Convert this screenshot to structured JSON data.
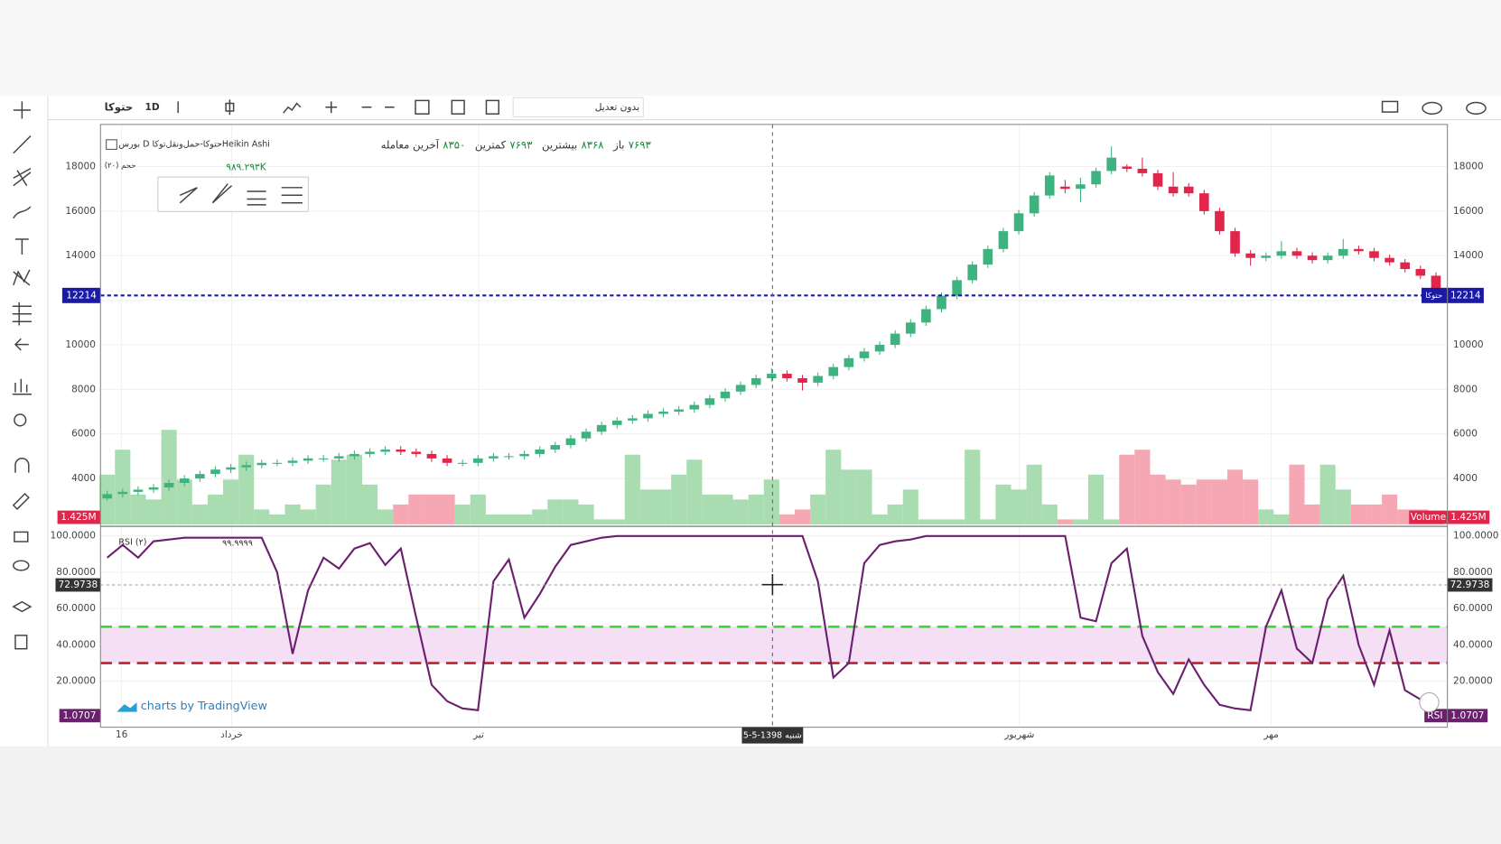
{
  "toolbar": {
    "symbol": "حتوکا",
    "interval": "1D",
    "adjust": "بدون تعدیل"
  },
  "legend": {
    "style": "Heikin Ashi",
    "name": "بورس D حتوکا-حمل‌ونقل‌توکا",
    "ohlc": [
      {
        "label": "باز",
        "value": "۷۶۹۳"
      },
      {
        "label": "بیشترین",
        "value": "۸۳۶۸"
      },
      {
        "label": "کمترین",
        "value": "۷۶۹۳"
      },
      {
        "label": "آخرین معامله",
        "value": "۸۳۵۰"
      }
    ],
    "volume_name": "حجم (۲۰)",
    "volume_value": "۹۸۹.۲۹۳K",
    "rsi_name": "RSI (۲)",
    "rsi_value": "۹۹.۹۹۹۹"
  },
  "time_labels": [
    "16",
    "خرداد",
    "تیر",
    "شهریور",
    "مهر"
  ],
  "watermark": "charts by TradingView",
  "chart_data": {
    "type": "candlestick",
    "up_color": "#3fb37f",
    "down_color": "#e0264a",
    "ylim": [
      1940,
      19890
    ],
    "yticks": [
      4000,
      6000,
      8000,
      10000,
      12000,
      14000,
      16000,
      18000
    ],
    "price_line": 12214,
    "price_line_color": "#1a1aa6",
    "candles": [
      [
        3100,
        3450,
        3000,
        3300
      ],
      [
        3300,
        3550,
        3150,
        3400
      ],
      [
        3400,
        3650,
        3250,
        3500
      ],
      [
        3500,
        3750,
        3350,
        3600
      ],
      [
        3600,
        3950,
        3450,
        3800
      ],
      [
        3800,
        4150,
        3650,
        4000
      ],
      [
        4000,
        4350,
        3850,
        4200
      ],
      [
        4200,
        4550,
        4050,
        4400
      ],
      [
        4400,
        4650,
        4250,
        4500
      ],
      [
        4500,
        4750,
        4350,
        4600
      ],
      [
        4600,
        4850,
        4450,
        4700
      ],
      [
        4700,
        4850,
        4550,
        4700
      ],
      [
        4700,
        4950,
        4550,
        4800
      ],
      [
        4800,
        5050,
        4650,
        4900
      ],
      [
        4900,
        5050,
        4750,
        4900
      ],
      [
        4900,
        5150,
        4750,
        5000
      ],
      [
        5000,
        5250,
        4850,
        5100
      ],
      [
        5100,
        5350,
        4950,
        5200
      ],
      [
        5200,
        5450,
        5050,
        5300
      ],
      [
        5300,
        5450,
        5050,
        5200
      ],
      [
        5200,
        5350,
        4950,
        5100
      ],
      [
        5100,
        5250,
        4750,
        4900
      ],
      [
        4900,
        5050,
        4550,
        4700
      ],
      [
        4700,
        4850,
        4550,
        4700
      ],
      [
        4700,
        5050,
        4550,
        4900
      ],
      [
        4900,
        5150,
        4750,
        5000
      ],
      [
        5000,
        5150,
        4850,
        5000
      ],
      [
        5000,
        5250,
        4850,
        5100
      ],
      [
        5100,
        5450,
        4950,
        5300
      ],
      [
        5300,
        5650,
        5150,
        5500
      ],
      [
        5500,
        5950,
        5350,
        5800
      ],
      [
        5800,
        6250,
        5650,
        6100
      ],
      [
        6100,
        6550,
        5950,
        6400
      ],
      [
        6400,
        6750,
        6250,
        6600
      ],
      [
        6600,
        6850,
        6450,
        6700
      ],
      [
        6700,
        7050,
        6550,
        6900
      ],
      [
        6900,
        7150,
        6750,
        7000
      ],
      [
        7000,
        7250,
        6850,
        7100
      ],
      [
        7100,
        7450,
        6950,
        7300
      ],
      [
        7300,
        7750,
        7150,
        7600
      ],
      [
        7600,
        8050,
        7450,
        7900
      ],
      [
        7900,
        8350,
        7750,
        8200
      ],
      [
        8200,
        8650,
        8050,
        8500
      ],
      [
        8500,
        8950,
        8350,
        8700
      ],
      [
        8700,
        8850,
        8350,
        8500
      ],
      [
        8500,
        8650,
        7950,
        8300
      ],
      [
        8300,
        8750,
        8150,
        8600
      ],
      [
        8600,
        9150,
        8450,
        9000
      ],
      [
        9000,
        9550,
        8850,
        9400
      ],
      [
        9400,
        9850,
        9250,
        9700
      ],
      [
        9700,
        10150,
        9550,
        10000
      ],
      [
        10000,
        10650,
        9850,
        10500
      ],
      [
        10500,
        11150,
        10350,
        11000
      ],
      [
        11000,
        11750,
        10850,
        11600
      ],
      [
        11600,
        12350,
        11450,
        12200
      ],
      [
        12200,
        13050,
        12050,
        12900
      ],
      [
        12900,
        13750,
        12750,
        13600
      ],
      [
        13600,
        14450,
        13450,
        14300
      ],
      [
        14300,
        15250,
        14150,
        15100
      ],
      [
        15100,
        16050,
        14950,
        15900
      ],
      [
        15900,
        16850,
        15750,
        16700
      ],
      [
        16700,
        17750,
        16550,
        17600
      ],
      [
        17100,
        17400,
        16800,
        17000
      ],
      [
        17000,
        17500,
        16400,
        17200
      ],
      [
        17200,
        17950,
        17050,
        17800
      ],
      [
        17800,
        18900,
        17650,
        18400
      ],
      [
        18000,
        18100,
        17750,
        17900
      ],
      [
        17900,
        18400,
        17550,
        17700
      ],
      [
        17700,
        17850,
        16950,
        17100
      ],
      [
        17100,
        17750,
        16650,
        16800
      ],
      [
        17100,
        17250,
        16650,
        16800
      ],
      [
        16800,
        16950,
        15850,
        16000
      ],
      [
        16000,
        16150,
        14950,
        15100
      ],
      [
        15100,
        15250,
        13950,
        14100
      ],
      [
        14100,
        14250,
        13550,
        13900
      ],
      [
        13900,
        14150,
        13750,
        14000
      ],
      [
        14000,
        14650,
        13850,
        14200
      ],
      [
        14200,
        14350,
        13850,
        14000
      ],
      [
        14000,
        14150,
        13650,
        13800
      ],
      [
        13800,
        14150,
        13650,
        14000
      ],
      [
        14000,
        14750,
        13850,
        14300
      ],
      [
        14300,
        14450,
        14050,
        14200
      ],
      [
        14200,
        14350,
        13750,
        13900
      ],
      [
        13900,
        14050,
        13550,
        13700
      ],
      [
        13700,
        13850,
        13250,
        13400
      ],
      [
        13400,
        13550,
        12950,
        13100
      ],
      [
        13100,
        13250,
        12350,
        12500
      ]
    ],
    "volume": {
      "name": "Volume",
      "ylim": [
        0,
        25
      ],
      "last_label": "1.425M",
      "values": [
        10,
        15,
        6,
        5,
        19,
        9,
        4,
        6,
        9,
        14,
        3,
        2,
        4,
        3,
        8,
        13,
        14,
        8,
        3,
        4,
        6,
        6,
        6,
        4,
        6,
        2,
        2,
        2,
        3,
        5,
        5,
        4,
        1,
        1,
        14,
        7,
        7,
        10,
        13,
        6,
        6,
        5,
        6,
        9,
        2,
        3,
        6,
        15,
        11,
        11,
        2,
        4,
        7,
        1,
        1,
        1,
        15,
        1,
        8,
        7,
        12,
        4,
        1,
        1,
        10,
        1,
        14,
        15,
        10,
        9,
        8,
        9,
        9,
        11,
        9,
        3,
        2,
        12,
        4,
        12,
        7,
        4,
        4,
        6,
        3,
        3,
        1.425
      ]
    },
    "rsi": {
      "name": "RSI",
      "color": "#6b1f6e",
      "ylim": [
        -5.3,
        104.2
      ],
      "yticks": [
        {
          "value": 20,
          "label": "20.0000"
        },
        {
          "value": 40,
          "label": "40.0000"
        },
        {
          "value": 60,
          "label": "60.0000"
        },
        {
          "value": 80,
          "label": "80.0000"
        },
        {
          "value": 100,
          "label": "100.0000"
        }
      ],
      "levels": [
        {
          "value": 50,
          "color": "#33dd33"
        },
        {
          "value": 30,
          "color": "#c0202a"
        }
      ],
      "values": [
        88,
        95,
        88,
        97,
        98,
        99,
        99,
        99,
        99,
        99,
        99,
        80,
        35,
        70,
        88,
        82,
        93,
        96,
        84,
        93,
        55,
        18,
        9,
        5,
        4,
        75,
        87,
        55,
        68,
        83,
        95,
        97,
        99,
        99.9,
        99.9,
        99.9,
        99.9,
        99.9,
        99.9,
        99.9,
        99.9,
        99.9,
        99.9,
        99.9,
        99.9,
        99.9,
        75,
        22,
        30,
        85,
        95,
        97,
        98,
        99.9,
        99.9,
        99.9,
        99.9,
        99.9,
        99.9,
        99.9,
        99.9,
        99.9,
        99.9,
        55,
        53,
        85,
        93,
        45,
        25,
        13,
        32,
        18,
        7,
        5,
        4,
        50,
        70,
        38,
        30,
        65,
        78,
        40,
        18,
        48,
        15,
        10,
        1.0707
      ]
    },
    "crosshair": {
      "rsi": 72.9738,
      "date": "شنبه 1398-5-5"
    }
  }
}
